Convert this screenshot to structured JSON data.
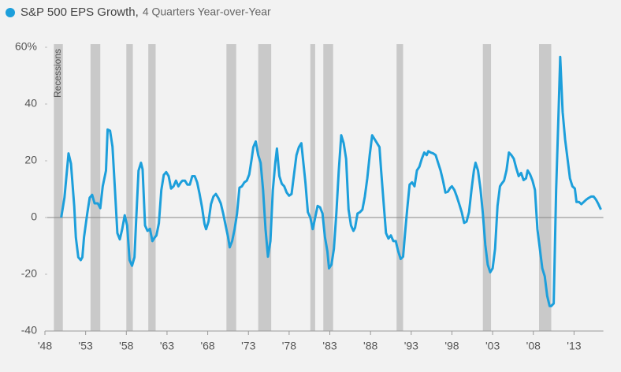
{
  "chart_data": {
    "type": "line",
    "title": "S&P 500 EPS Growth,",
    "subtitle": "4 Quarters Year-over-Year",
    "recession_label": "Recessions",
    "recession_color": "#c9c9c9",
    "recessions": [
      [
        1949.1,
        1950.2
      ],
      [
        1953.6,
        1954.8
      ],
      [
        1958.0,
        1958.8
      ],
      [
        1960.7,
        1961.6
      ],
      [
        1970.3,
        1971.5
      ],
      [
        1974.2,
        1975.8
      ],
      [
        1980.6,
        1981.2
      ],
      [
        1982.2,
        1983.4
      ],
      [
        1991.2,
        1992.0
      ],
      [
        2001.8,
        2002.8
      ],
      [
        2008.7,
        2010.2
      ]
    ],
    "xlim": [
      1948,
      2016.6
    ],
    "ylim": [
      -40,
      60
    ],
    "xticks": [
      {
        "value": 1948,
        "label": "'48"
      },
      {
        "value": 1953,
        "label": "'53"
      },
      {
        "value": 1958,
        "label": "'58"
      },
      {
        "value": 1963,
        "label": "'63"
      },
      {
        "value": 1968,
        "label": "'68"
      },
      {
        "value": 1973,
        "label": "'73"
      },
      {
        "value": 1978,
        "label": "'78"
      },
      {
        "value": 1983,
        "label": "'83"
      },
      {
        "value": 1988,
        "label": "'88"
      },
      {
        "value": 1993,
        "label": "'93"
      },
      {
        "value": 1998,
        "label": "'98"
      },
      {
        "value": 2003,
        "label": "'03"
      },
      {
        "value": 2008,
        "label": "'08"
      },
      {
        "value": 2013,
        "label": "'13"
      }
    ],
    "yticks": [
      {
        "value": 60,
        "label": "60%"
      },
      40,
      20,
      0,
      -20,
      -40
    ],
    "x": [
      1950.0,
      1950.4,
      1950.9,
      1951.2,
      1951.6,
      1951.8,
      1952.1,
      1952.4,
      1952.6,
      1952.8,
      1953.2,
      1953.5,
      1953.8,
      1954.1,
      1954.5,
      1954.8,
      1955.1,
      1955.5,
      1955.7,
      1956.0,
      1956.3,
      1956.6,
      1956.9,
      1957.2,
      1957.5,
      1957.8,
      1958.1,
      1958.4,
      1958.7,
      1959.0,
      1959.2,
      1959.5,
      1959.8,
      1960.0,
      1960.3,
      1960.6,
      1960.9,
      1961.2,
      1961.5,
      1961.7,
      1962.0,
      1962.3,
      1962.6,
      1962.9,
      1963.2,
      1963.5,
      1963.8,
      1964.1,
      1964.4,
      1964.7,
      1964.9,
      1965.2,
      1965.5,
      1965.8,
      1966.1,
      1966.4,
      1966.7,
      1967.0,
      1967.3,
      1967.6,
      1967.8,
      1968.1,
      1968.4,
      1968.7,
      1969.0,
      1969.3,
      1969.6,
      1969.9,
      1970.2,
      1970.5,
      1970.7,
      1971.0,
      1971.3,
      1971.6,
      1971.9,
      1972.2,
      1972.5,
      1972.8,
      1973.1,
      1973.4,
      1973.6,
      1973.9,
      1974.2,
      1974.5,
      1974.8,
      1975.1,
      1975.4,
      1975.7,
      1976.0,
      1976.3,
      1976.5,
      1976.8,
      1977.1,
      1977.4,
      1977.7,
      1978.0,
      1978.3,
      1978.6,
      1978.9,
      1979.2,
      1979.5,
      1979.8,
      1980.0,
      1980.3,
      1980.6,
      1980.9,
      1981.2,
      1981.5,
      1981.8,
      1982.1,
      1982.4,
      1982.7,
      1982.9,
      1983.2,
      1983.5,
      1983.8,
      1984.1,
      1984.4,
      1984.7,
      1985.0,
      1985.3,
      1985.6,
      1985.9,
      1986.1,
      1986.4,
      1986.7,
      1987.0,
      1987.3,
      1987.6,
      1987.9,
      1988.2,
      1988.5,
      1988.8,
      1989.1,
      1989.3,
      1989.6,
      1989.9,
      1990.2,
      1990.5,
      1990.8,
      1991.1,
      1991.4,
      1991.7,
      1992.0,
      1992.2,
      1992.5,
      1992.8,
      1993.1,
      1993.4,
      1993.7,
      1994.0,
      1994.3,
      1994.6,
      1994.9,
      1995.1,
      1995.4,
      1995.7,
      1996.0,
      1996.3,
      1996.6,
      1996.9,
      1997.2,
      1997.5,
      1997.8,
      1998.0,
      1998.3,
      1998.6,
      1998.9,
      1999.2,
      1999.5,
      1999.8,
      2000.1,
      2000.4,
      2000.7,
      2000.9,
      2001.2,
      2001.5,
      2001.8,
      2002.1,
      2002.4,
      2002.7,
      2003.0,
      2003.3,
      2003.6,
      2003.9,
      2004.1,
      2004.4,
      2004.7,
      2005.0,
      2005.3,
      2005.6,
      2005.9,
      2006.2,
      2006.5,
      2006.8,
      2007.1,
      2007.3,
      2007.6,
      2007.9,
      2008.2,
      2008.5,
      2008.8,
      2009.1,
      2009.4,
      2009.7,
      2010.0,
      2010.2,
      2010.5,
      2010.8,
      2011.1,
      2011.3,
      2011.6,
      2011.9,
      2012.2,
      2012.5,
      2012.8,
      2013.1,
      2013.3,
      2013.6,
      2013.9,
      2014.2,
      2014.5,
      2014.8,
      2015.1,
      2015.4,
      2015.7,
      2016.0,
      2016.3
    ],
    "series": [
      {
        "name": "S&P 500 EPS Growth",
        "color": "#1d9fdb",
        "values": [
          0,
          7,
          22.6,
          19,
          4,
          -7,
          -14,
          -15,
          -14,
          -7,
          1.4,
          7,
          8,
          5,
          5,
          3.3,
          11,
          16.5,
          31,
          30.6,
          25,
          10,
          -5.5,
          -7.7,
          -4,
          0.8,
          -2.8,
          -15,
          -17,
          -14,
          -1.4,
          16.5,
          19.3,
          17,
          -2.8,
          -4.7,
          -4,
          -8.3,
          -7,
          -6.3,
          -2,
          9.7,
          15,
          16,
          14.6,
          10.2,
          11,
          13,
          11,
          12.4,
          13,
          13,
          11.6,
          11.6,
          14.6,
          14.6,
          12.4,
          8.3,
          3.6,
          -2.2,
          -4.1,
          -1.4,
          4.7,
          7.4,
          8.3,
          6.9,
          5,
          1.4,
          -2.8,
          -6.9,
          -10.5,
          -8.3,
          -4.1,
          1.4,
          10.5,
          11,
          12.4,
          13,
          15.2,
          20.7,
          24.8,
          26.8,
          22,
          19.3,
          9.7,
          -4.1,
          -13.8,
          -8.3,
          9.7,
          19.3,
          24.3,
          14.6,
          11.9,
          11,
          8.8,
          7.7,
          8.3,
          15.2,
          22,
          24.8,
          26.2,
          17.9,
          12.4,
          1.9,
          0,
          -4.1,
          0,
          4.1,
          3.6,
          1.4,
          -6.9,
          -11.9,
          -17.9,
          -16.6,
          -11,
          1.4,
          16.6,
          29,
          26.2,
          20.7,
          2.8,
          -2.8,
          -4.7,
          -3.6,
          1.4,
          1.9,
          2.8,
          7.4,
          13.8,
          22,
          29,
          27.6,
          26.2,
          24.8,
          16.6,
          5.5,
          -5.5,
          -7.4,
          -6.3,
          -8.3,
          -8.3,
          -11.9,
          -14.6,
          -13.8,
          -6.9,
          2.8,
          11.6,
          12.4,
          11,
          16.6,
          17.9,
          20.7,
          22.9,
          22,
          23.4,
          22.9,
          22.6,
          22,
          19.3,
          16.6,
          13,
          8.8,
          9.1,
          10.5,
          11,
          9.7,
          7.4,
          4.7,
          1.9,
          -1.9,
          -1.4,
          1.9,
          9.7,
          16.6,
          19.3,
          16.6,
          10.2,
          1.4,
          -9.7,
          -16.6,
          -19.3,
          -17.9,
          -11,
          4.1,
          11,
          11.9,
          13,
          16.6,
          22.9,
          22,
          20.7,
          17.4,
          14.6,
          15.7,
          13.2,
          13.8,
          16.6,
          15.2,
          13,
          9.7,
          -4.1,
          -11,
          -17.9,
          -20.7,
          -27.6,
          -31.2,
          -31.2,
          -30.3,
          9.7,
          37.2,
          56.6,
          37.2,
          27.6,
          20.7,
          13.8,
          11,
          10.2,
          5.5,
          5.5,
          4.7,
          5.5,
          6.3,
          6.9,
          7.4,
          7.4,
          6.3,
          4.7,
          2.8
        ]
      }
    ]
  }
}
